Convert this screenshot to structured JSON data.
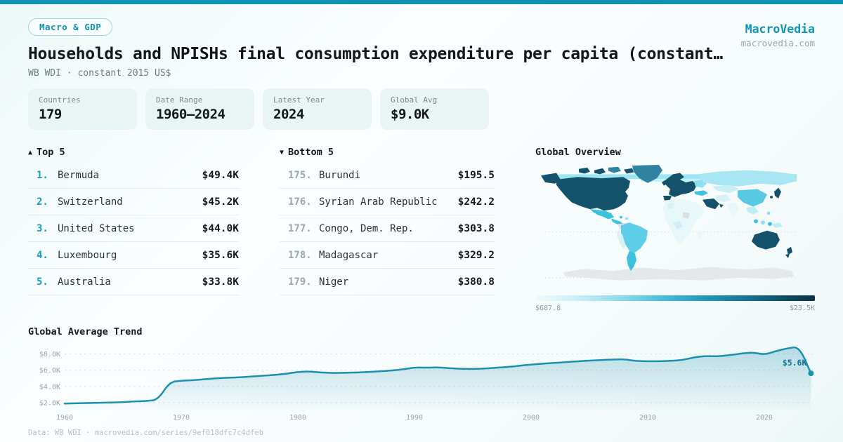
{
  "brand": {
    "name": "MacroVedia",
    "domain": "macrovedia.com"
  },
  "header": {
    "badge": "Macro & GDP",
    "title": "Households and NPISHs final consumption expenditure per capita (constant…",
    "subtitle": "WB WDI · constant 2015 US$"
  },
  "stats": [
    {
      "label": "Countries",
      "value": "179"
    },
    {
      "label": "Date Range",
      "value": "1960–2024"
    },
    {
      "label": "Latest Year",
      "value": "2024"
    },
    {
      "label": "Global Avg",
      "value": "$9.0K"
    }
  ],
  "top5": {
    "arrow": "▲",
    "title": "Top 5",
    "items": [
      {
        "rank": "1.",
        "name": "Bermuda",
        "value": "$49.4K"
      },
      {
        "rank": "2.",
        "name": "Switzerland",
        "value": "$45.2K"
      },
      {
        "rank": "3.",
        "name": "United States",
        "value": "$44.0K"
      },
      {
        "rank": "4.",
        "name": "Luxembourg",
        "value": "$35.6K"
      },
      {
        "rank": "5.",
        "name": "Australia",
        "value": "$33.8K"
      }
    ]
  },
  "bottom5": {
    "arrow": "▼",
    "title": "Bottom 5",
    "items": [
      {
        "rank": "175.",
        "name": "Burundi",
        "value": "$195.5"
      },
      {
        "rank": "176.",
        "name": "Syrian Arab Republic",
        "value": "$242.2"
      },
      {
        "rank": "177.",
        "name": "Congo, Dem. Rep.",
        "value": "$303.8"
      },
      {
        "rank": "178.",
        "name": "Madagascar",
        "value": "$329.2"
      },
      {
        "rank": "179.",
        "name": "Niger",
        "value": "$380.8"
      }
    ]
  },
  "map": {
    "title": "Global Overview",
    "legend_min": "$687.8",
    "legend_max": "$23.5K"
  },
  "trend": {
    "title": "Global Average Trend"
  },
  "footer": {
    "text": "Data: WB WDI · macrovedia.com/series/9ef018dfc7c4dfeb"
  },
  "colors": {
    "accent": "#0e93b2",
    "chart_line": "#1b90b0",
    "end_label": "#0f7593",
    "map_scale_low": "#f0fbfd",
    "map_scale_high": "#0c3144"
  },
  "chart_data": [
    {
      "type": "line",
      "title": "Global Average Trend",
      "unit": "constant 2015 US$ (thousands)",
      "x": [
        1960,
        1961,
        1962,
        1963,
        1964,
        1965,
        1966,
        1967,
        1968,
        1969,
        1970,
        1971,
        1972,
        1973,
        1974,
        1975,
        1976,
        1977,
        1978,
        1979,
        1980,
        1981,
        1982,
        1983,
        1984,
        1985,
        1986,
        1987,
        1988,
        1989,
        1990,
        1991,
        1992,
        1993,
        1994,
        1995,
        1996,
        1997,
        1998,
        1999,
        2000,
        2001,
        2002,
        2003,
        2004,
        2005,
        2006,
        2007,
        2008,
        2009,
        2010,
        2011,
        2012,
        2013,
        2014,
        2015,
        2016,
        2017,
        2018,
        2019,
        2020,
        2021,
        2022,
        2023,
        2024
      ],
      "values": [
        1.9,
        1.93,
        1.96,
        1.99,
        2.02,
        2.07,
        2.17,
        2.2,
        2.35,
        4.55,
        4.7,
        4.78,
        4.88,
        5.0,
        5.08,
        5.12,
        5.22,
        5.32,
        5.42,
        5.55,
        5.8,
        5.85,
        5.72,
        5.65,
        5.68,
        5.72,
        5.78,
        5.85,
        5.95,
        6.1,
        6.35,
        6.3,
        6.35,
        6.25,
        6.18,
        6.15,
        6.2,
        6.3,
        6.4,
        6.55,
        6.7,
        6.8,
        6.9,
        7.0,
        7.1,
        7.18,
        7.25,
        7.32,
        7.35,
        7.12,
        7.1,
        7.1,
        7.15,
        7.25,
        7.6,
        7.75,
        7.7,
        7.85,
        8.05,
        8.2,
        7.9,
        8.35,
        8.7,
        8.9,
        5.62
      ],
      "xticks": [
        1960,
        1970,
        1980,
        1990,
        2000,
        2010,
        2020
      ],
      "ytick_values": [
        2,
        4,
        6,
        8
      ],
      "ytick_labels": [
        "$2.0K",
        "$4.0K",
        "$6.0K",
        "$8.0K"
      ],
      "ylim": [
        1.5,
        9.6
      ],
      "grid": true,
      "legend_position": "none",
      "end_annotation": "$5.6K"
    },
    {
      "type": "heatmap",
      "subtype": "choropleth-world-map",
      "title": "Global Overview",
      "scale_min": 687.8,
      "scale_max": 23500,
      "scale_min_label": "$687.8",
      "scale_max_label": "$23.5K",
      "high_value_regions": [
        "North America",
        "Western Europe",
        "Australia",
        "New Zealand",
        "Japan",
        "Arabian Peninsula"
      ],
      "mid_value_regions": [
        "Greenland",
        "Mexico",
        "Brazil",
        "Argentina",
        "Russia",
        "China",
        "Turkey"
      ],
      "low_value_regions": [
        "Africa",
        "India",
        "South Asia"
      ],
      "no_data_regions": [
        "Antarctica",
        "Venezuela"
      ]
    }
  ]
}
